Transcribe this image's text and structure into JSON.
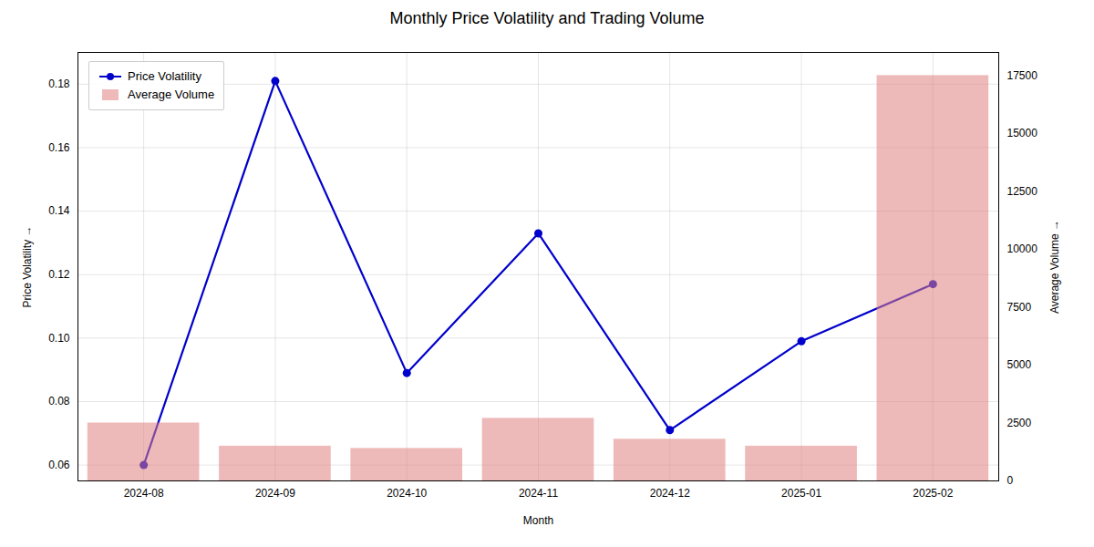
{
  "chart_data": {
    "type": "combo",
    "title": "Monthly Price Volatility and Trading Volume",
    "xlabel": "Month",
    "ylabel": "Price Volatility",
    "y2label": "Average Volume",
    "categories": [
      "2024-08",
      "2024-09",
      "2024-10",
      "2024-11",
      "2024-12",
      "2025-01",
      "2025-02"
    ],
    "series": [
      {
        "name": "Price Volatility",
        "type": "line",
        "marker": "circle",
        "color": "#0000cc",
        "values": [
          0.06,
          0.181,
          0.089,
          0.133,
          0.071,
          0.099,
          0.117
        ]
      },
      {
        "name": "Average Volume",
        "type": "bar",
        "axis": "y2",
        "color": "#e08080",
        "values": [
          2500,
          1500,
          1400,
          2700,
          1800,
          1500,
          17500
        ]
      }
    ],
    "ylim": [
      0.055,
      0.19
    ],
    "yticks": [
      0.06,
      0.08,
      {
        "value": 0.1,
        "label": "0.10"
      },
      0.12,
      0.14,
      0.16,
      0.18
    ],
    "y2lim": [
      0,
      18500
    ],
    "y2ticks": [
      0,
      2500,
      5000,
      7500,
      10000,
      12500,
      15000,
      17500
    ],
    "grid": true,
    "legend": "upper left"
  }
}
